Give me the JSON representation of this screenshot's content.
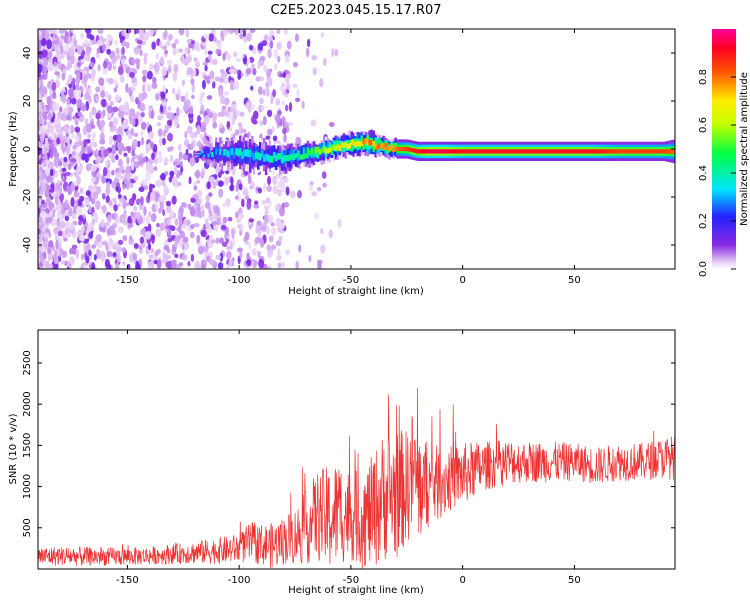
{
  "figure": {
    "title": "C2E5.2023.045.15.17.R07"
  },
  "chart_data": [
    {
      "type": "heatmap",
      "xlabel": "Height of straight line (km)",
      "ylabel": "Frequency (Hz)",
      "xlim": [
        -190,
        95
      ],
      "ylim": [
        -50,
        50
      ],
      "xticks": [
        -150,
        -100,
        -50,
        0,
        50
      ],
      "xtick_labels": [
        "-150",
        "-100",
        "-50",
        "0",
        "50"
      ],
      "yticks": [
        -40,
        -20,
        0,
        20,
        40
      ],
      "ytick_labels": [
        "-40",
        "-20",
        "0",
        "20",
        "40"
      ],
      "colorbar": {
        "label": "Normalized spectral amplitude",
        "range": [
          0.0,
          1.0
        ],
        "ticks": [
          0.0,
          0.2,
          0.4,
          0.6,
          0.8
        ],
        "tick_labels": [
          "0.0",
          "0.2",
          "0.4",
          "0.6",
          "0.8"
        ],
        "colormap": "rainbow (purple-blue-cyan-green-yellow-red-magenta)"
      },
      "ridge": {
        "x": [
          -190,
          -180,
          -170,
          -160,
          -150,
          -140,
          -130,
          -120,
          -110,
          -100,
          -90,
          -80,
          -75,
          -70,
          -65,
          -60,
          -55,
          -50,
          -45,
          -40,
          -35,
          -30,
          -25,
          -20,
          -15,
          -10,
          0,
          10,
          20,
          30,
          40,
          50,
          60,
          70,
          80,
          90,
          95
        ],
        "freq": [
          0,
          2,
          0,
          -1,
          0,
          -1,
          -2,
          -2,
          -2,
          -2,
          -3,
          -4,
          -3,
          -2,
          -1,
          0,
          1,
          2,
          3,
          2,
          1,
          0,
          0,
          -1,
          -1,
          -1,
          -1,
          -1,
          -1,
          -1,
          -1,
          -1,
          -1,
          -1,
          -1,
          -1,
          -1
        ],
        "amplitude": [
          0.2,
          0.25,
          0.2,
          0.2,
          0.2,
          0.25,
          0.25,
          0.3,
          0.3,
          0.35,
          0.35,
          0.4,
          0.45,
          0.5,
          0.55,
          0.6,
          0.65,
          0.7,
          0.75,
          0.75,
          0.75,
          0.8,
          0.85,
          0.9,
          0.95,
          0.95,
          0.9,
          0.9,
          0.9,
          0.9,
          0.9,
          0.9,
          0.9,
          0.85,
          0.85,
          0.85,
          0.8
        ],
        "width_hz": [
          0,
          0,
          0,
          0,
          0,
          0,
          0,
          0,
          6,
          7,
          7,
          6,
          5,
          5,
          5,
          5,
          5,
          5,
          5,
          5,
          4,
          4,
          4,
          4,
          4,
          4,
          4,
          4,
          4,
          4,
          4,
          4,
          4,
          4,
          4,
          4,
          5
        ]
      },
      "noise_region": {
        "x_end": -78,
        "fade_end": -50
      }
    },
    {
      "type": "line",
      "xlabel": "Height of straight line (km)",
      "ylabel": "SNR (10 * v/v)",
      "xlim": [
        -190,
        95
      ],
      "ylim": [
        0,
        2900
      ],
      "xticks": [
        -150,
        -100,
        -50,
        0,
        50
      ],
      "xtick_labels": [
        "-150",
        "-100",
        "-50",
        "0",
        "50"
      ],
      "yticks": [
        500,
        1000,
        1500,
        2000,
        2500
      ],
      "ytick_labels": [
        "500",
        "1000",
        "1500",
        "2000",
        "2500"
      ],
      "series": [
        {
          "color": "#ee3333",
          "x": [
            -190,
            -180,
            -170,
            -160,
            -150,
            -140,
            -130,
            -120,
            -110,
            -100,
            -95,
            -90,
            -85,
            -80,
            -75,
            -70,
            -65,
            -60,
            -55,
            -50,
            -45,
            -40,
            -35,
            -30,
            -25,
            -22,
            -20,
            -15,
            -10,
            -5,
            0,
            5,
            10,
            20,
            30,
            40,
            50,
            60,
            70,
            80,
            90,
            95
          ],
          "values": [
            150,
            160,
            150,
            150,
            150,
            160,
            180,
            200,
            220,
            250,
            320,
            300,
            280,
            350,
            400,
            500,
            650,
            600,
            700,
            650,
            600,
            700,
            900,
            900,
            1000,
            1200,
            1000,
            1000,
            1050,
            1100,
            1150,
            1200,
            1250,
            1300,
            1300,
            1300,
            1300,
            1250,
            1300,
            1300,
            1350,
            1350
          ],
          "spread": [
            120,
            120,
            120,
            110,
            110,
            110,
            120,
            140,
            160,
            180,
            250,
            250,
            280,
            300,
            350,
            450,
            550,
            650,
            650,
            550,
            600,
            700,
            800,
            800,
            700,
            800,
            700,
            500,
            450,
            400,
            380,
            350,
            300,
            280,
            250,
            250,
            230,
            230,
            230,
            230,
            250,
            280
          ]
        }
      ]
    }
  ]
}
